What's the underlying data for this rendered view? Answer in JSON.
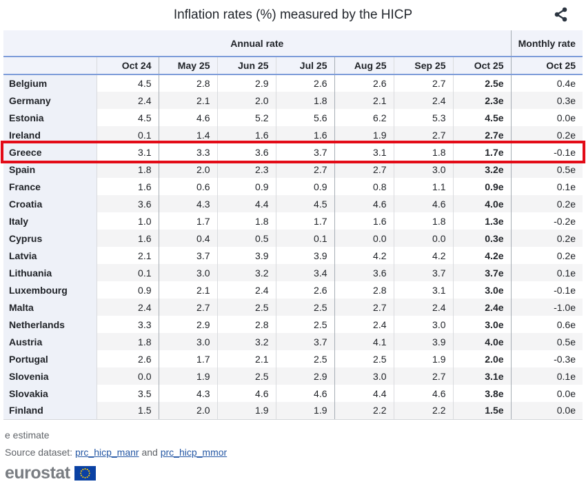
{
  "title": "Inflation rates (%) measured by the HICP",
  "share_label": "share",
  "chart_data": {
    "type": "table",
    "title": "Inflation rates (%) measured by the HICP",
    "annual_label": "Annual rate",
    "monthly_label": "Monthly rate",
    "annual_columns": [
      "Oct 24",
      "May 25",
      "Jun 25",
      "Jul 25",
      "Aug 25",
      "Sep 25",
      "Oct 25"
    ],
    "monthly_column": "Oct 25",
    "value_unit": "%",
    "note": "e = estimate; bold last annual column values are estimates",
    "rows": [
      {
        "country": "Belgium",
        "annual": [
          "4.5",
          "2.8",
          "2.9",
          "2.6",
          "2.6",
          "2.7",
          "2.5e"
        ],
        "monthly": "0.4e",
        "highlighted": false
      },
      {
        "country": "Germany",
        "annual": [
          "2.4",
          "2.1",
          "2.0",
          "1.8",
          "2.1",
          "2.4",
          "2.3e"
        ],
        "monthly": "0.3e",
        "highlighted": false
      },
      {
        "country": "Estonia",
        "annual": [
          "4.5",
          "4.6",
          "5.2",
          "5.6",
          "6.2",
          "5.3",
          "4.5e"
        ],
        "monthly": "0.0e",
        "highlighted": false
      },
      {
        "country": "Ireland",
        "annual": [
          "0.1",
          "1.4",
          "1.6",
          "1.6",
          "1.9",
          "2.7",
          "2.7e"
        ],
        "monthly": "0.2e",
        "highlighted": false
      },
      {
        "country": "Greece",
        "annual": [
          "3.1",
          "3.3",
          "3.6",
          "3.7",
          "3.1",
          "1.8",
          "1.7e"
        ],
        "monthly": "-0.1e",
        "highlighted": true
      },
      {
        "country": "Spain",
        "annual": [
          "1.8",
          "2.0",
          "2.3",
          "2.7",
          "2.7",
          "3.0",
          "3.2e"
        ],
        "monthly": "0.5e",
        "highlighted": false
      },
      {
        "country": "France",
        "annual": [
          "1.6",
          "0.6",
          "0.9",
          "0.9",
          "0.8",
          "1.1",
          "0.9e"
        ],
        "monthly": "0.1e",
        "highlighted": false
      },
      {
        "country": "Croatia",
        "annual": [
          "3.6",
          "4.3",
          "4.4",
          "4.5",
          "4.6",
          "4.6",
          "4.0e"
        ],
        "monthly": "0.2e",
        "highlighted": false
      },
      {
        "country": "Italy",
        "annual": [
          "1.0",
          "1.7",
          "1.8",
          "1.7",
          "1.6",
          "1.8",
          "1.3e"
        ],
        "monthly": "-0.2e",
        "highlighted": false
      },
      {
        "country": "Cyprus",
        "annual": [
          "1.6",
          "0.4",
          "0.5",
          "0.1",
          "0.0",
          "0.0",
          "0.3e"
        ],
        "monthly": "0.2e",
        "highlighted": false
      },
      {
        "country": "Latvia",
        "annual": [
          "2.1",
          "3.7",
          "3.9",
          "3.9",
          "4.2",
          "4.2",
          "4.2e"
        ],
        "monthly": "0.2e",
        "highlighted": false
      },
      {
        "country": "Lithuania",
        "annual": [
          "0.1",
          "3.0",
          "3.2",
          "3.4",
          "3.6",
          "3.7",
          "3.7e"
        ],
        "monthly": "0.1e",
        "highlighted": false
      },
      {
        "country": "Luxembourg",
        "annual": [
          "0.9",
          "2.1",
          "2.4",
          "2.6",
          "2.8",
          "3.1",
          "3.0e"
        ],
        "monthly": "-0.1e",
        "highlighted": false
      },
      {
        "country": "Malta",
        "annual": [
          "2.4",
          "2.7",
          "2.5",
          "2.5",
          "2.7",
          "2.4",
          "2.4e"
        ],
        "monthly": "-1.0e",
        "highlighted": false
      },
      {
        "country": "Netherlands",
        "annual": [
          "3.3",
          "2.9",
          "2.8",
          "2.5",
          "2.4",
          "3.0",
          "3.0e"
        ],
        "monthly": "0.6e",
        "highlighted": false
      },
      {
        "country": "Austria",
        "annual": [
          "1.8",
          "3.0",
          "3.2",
          "3.7",
          "4.1",
          "3.9",
          "4.0e"
        ],
        "monthly": "0.5e",
        "highlighted": false
      },
      {
        "country": "Portugal",
        "annual": [
          "2.6",
          "1.7",
          "2.1",
          "2.5",
          "2.5",
          "1.9",
          "2.0e"
        ],
        "monthly": "-0.3e",
        "highlighted": false
      },
      {
        "country": "Slovenia",
        "annual": [
          "0.0",
          "1.9",
          "2.5",
          "2.9",
          "3.0",
          "2.7",
          "3.1e"
        ],
        "monthly": "0.1e",
        "highlighted": false
      },
      {
        "country": "Slovakia",
        "annual": [
          "3.5",
          "4.3",
          "4.6",
          "4.6",
          "4.4",
          "4.6",
          "3.8e"
        ],
        "monthly": "0.0e",
        "highlighted": false
      },
      {
        "country": "Finland",
        "annual": [
          "1.5",
          "2.0",
          "1.9",
          "1.9",
          "2.2",
          "2.2",
          "1.5e"
        ],
        "monthly": "0.0e",
        "highlighted": false
      }
    ]
  },
  "footer": {
    "note": "e estimate",
    "source_prefix": "Source dataset: ",
    "link1": "prc_hicp_manr",
    "conjunction": " and ",
    "link2": "prc_hicp_mmor",
    "logo": "eurostat"
  },
  "colors": {
    "line_blue": "#7d9cd9",
    "header_bg": "#f1f3fa",
    "name_col_bg": "#eef1f8",
    "stripe_bg": "#f4f4f5",
    "highlight_red": "#e30b17",
    "link_blue": "#2457a4",
    "text_dark": "#202328",
    "muted_gray": "#5f6368",
    "logo_gray": "#797d82",
    "flag_blue": "#0a41a3",
    "star_yellow": "#ffcc00",
    "icon_dark": "#2b3440"
  }
}
